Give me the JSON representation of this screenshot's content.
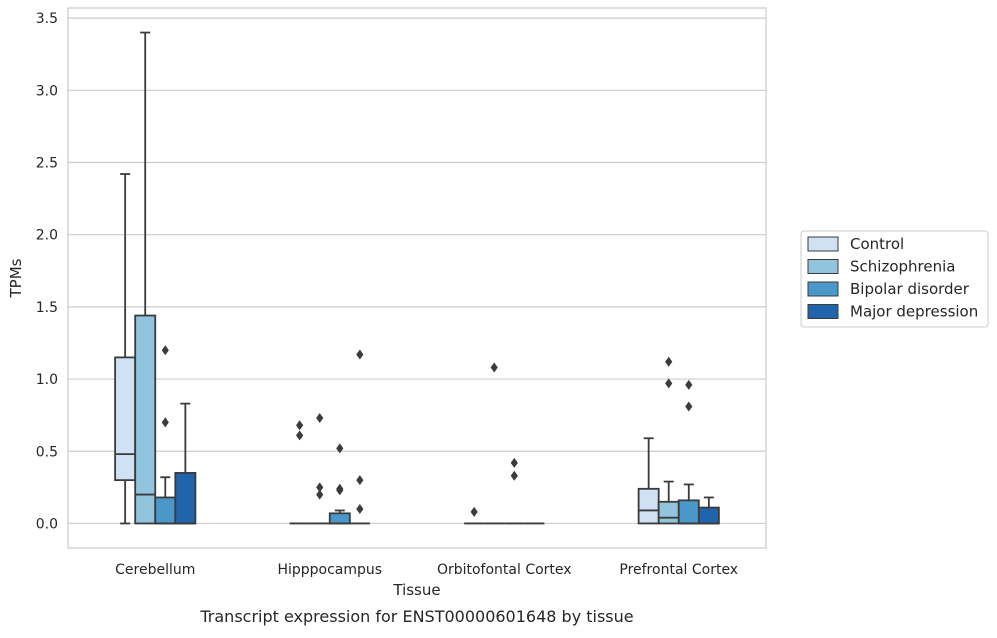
{
  "caption": "Transcript expression for ENST00000601648 by tissue",
  "chart_data": {
    "type": "boxplot",
    "xlabel": "Tissue",
    "ylabel": "TPMs",
    "ylim": [
      -0.17,
      3.57
    ],
    "yticks": [
      "0.0",
      "0.5",
      "1.0",
      "1.5",
      "2.0",
      "2.5",
      "3.0",
      "3.5"
    ],
    "ytick_values": [
      0,
      0.5,
      1.0,
      1.5,
      2.0,
      2.5,
      3.0,
      3.5
    ],
    "grid": "horizontal",
    "legend_position": "right",
    "categories": [
      "Cerebellum",
      "Hipppocampus",
      "Orbitofontal Cortex",
      "Prefrontal Cortex"
    ],
    "series": [
      {
        "name": "Control",
        "color": "#cfe1f2",
        "boxes": [
          {
            "whisker_low": 0,
            "q1": 0.3,
            "median": 0.48,
            "q3": 1.15,
            "whisker_high": 2.42,
            "outliers": []
          },
          {
            "whisker_low": 0,
            "q1": 0,
            "median": 0,
            "q3": 0,
            "whisker_high": 0,
            "outliers": [
              0.61,
              0.68
            ]
          },
          {
            "whisker_low": 0,
            "q1": 0,
            "median": 0,
            "q3": 0,
            "whisker_high": 0,
            "outliers": [
              0.08
            ]
          },
          {
            "whisker_low": 0,
            "q1": 0,
            "median": 0.09,
            "q3": 0.24,
            "whisker_high": 0.59,
            "outliers": []
          }
        ]
      },
      {
        "name": "Schizophrenia",
        "color": "#93c4de",
        "boxes": [
          {
            "whisker_low": 0,
            "q1": 0,
            "median": 0.2,
            "q3": 1.44,
            "whisker_high": 3.4,
            "outliers": []
          },
          {
            "whisker_low": 0,
            "q1": 0,
            "median": 0,
            "q3": 0,
            "whisker_high": 0,
            "outliers": [
              0.2,
              0.25,
              0.73
            ]
          },
          {
            "whisker_low": 0,
            "q1": 0,
            "median": 0,
            "q3": 0,
            "whisker_high": 0,
            "outliers": [
              1.08
            ]
          },
          {
            "whisker_low": 0,
            "q1": 0,
            "median": 0.04,
            "q3": 0.15,
            "whisker_high": 0.29,
            "outliers": [
              0.97,
              1.12
            ]
          }
        ]
      },
      {
        "name": "Bipolar disorder",
        "color": "#4a98c9",
        "boxes": [
          {
            "whisker_low": 0,
            "q1": 0,
            "median": 0,
            "q3": 0.18,
            "whisker_high": 0.32,
            "outliers": [
              0.7,
              1.2
            ]
          },
          {
            "whisker_low": 0,
            "q1": 0,
            "median": 0,
            "q3": 0.07,
            "whisker_high": 0.09,
            "outliers": [
              0.23,
              0.24,
              0.52
            ]
          },
          {
            "whisker_low": 0,
            "q1": 0,
            "median": 0,
            "q3": 0,
            "whisker_high": 0,
            "outliers": [
              0.33,
              0.42
            ]
          },
          {
            "whisker_low": 0,
            "q1": 0,
            "median": 0,
            "q3": 0.16,
            "whisker_high": 0.27,
            "outliers": [
              0.81,
              0.96
            ]
          }
        ]
      },
      {
        "name": "Major depression",
        "color": "#2064ab",
        "boxes": [
          {
            "whisker_low": 0,
            "q1": 0,
            "median": 0,
            "q3": 0.35,
            "whisker_high": 0.83,
            "outliers": []
          },
          {
            "whisker_low": 0,
            "q1": 0,
            "median": 0,
            "q3": 0,
            "whisker_high": 0,
            "outliers": [
              0.1,
              0.3,
              1.17
            ]
          },
          {
            "whisker_low": 0,
            "q1": 0,
            "median": 0,
            "q3": 0,
            "whisker_high": 0,
            "outliers": []
          },
          {
            "whisker_low": 0,
            "q1": 0,
            "median": 0,
            "q3": 0.11,
            "whisker_high": 0.18,
            "outliers": []
          }
        ]
      }
    ]
  }
}
